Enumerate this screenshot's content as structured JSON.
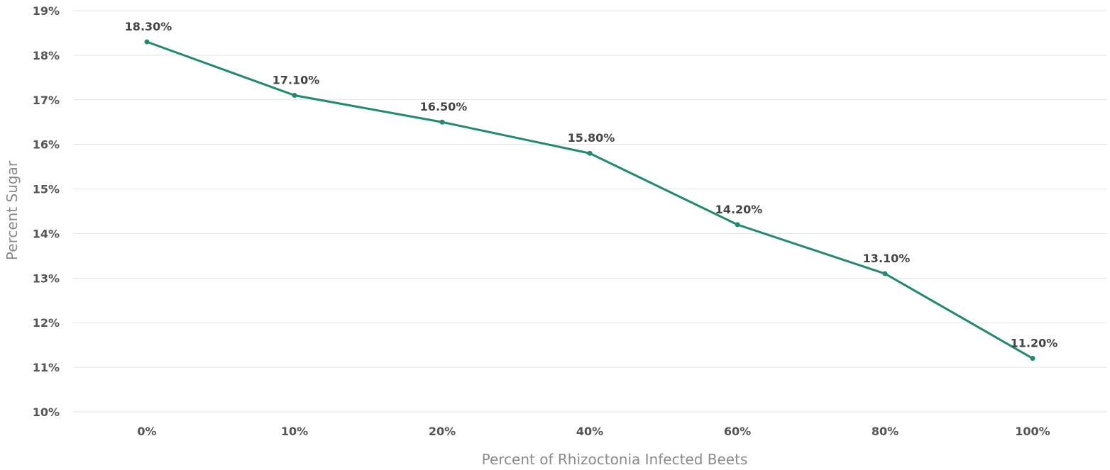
{
  "chart_data": {
    "type": "line",
    "categories": [
      "0%",
      "10%",
      "20%",
      "40%",
      "60%",
      "80%",
      "100%"
    ],
    "series": [
      {
        "values": [
          18.3,
          17.1,
          16.5,
          15.8,
          14.2,
          13.1,
          11.2
        ],
        "data_labels": [
          "18.30%",
          "17.10%",
          "16.50%",
          "15.80%",
          "14.20%",
          "13.10%",
          "11.20%"
        ],
        "color": "#1e8a6e"
      }
    ],
    "xlabel": "Percent of Rhizoctonia Infected Beets",
    "ylabel": "Percent Sugar",
    "ylim": [
      10,
      19
    ],
    "yticks": [
      "10%",
      "11%",
      "12%",
      "13%",
      "14%",
      "15%",
      "16%",
      "17%",
      "18%",
      "19%"
    ],
    "grid": "horizontal",
    "legend": "none"
  }
}
